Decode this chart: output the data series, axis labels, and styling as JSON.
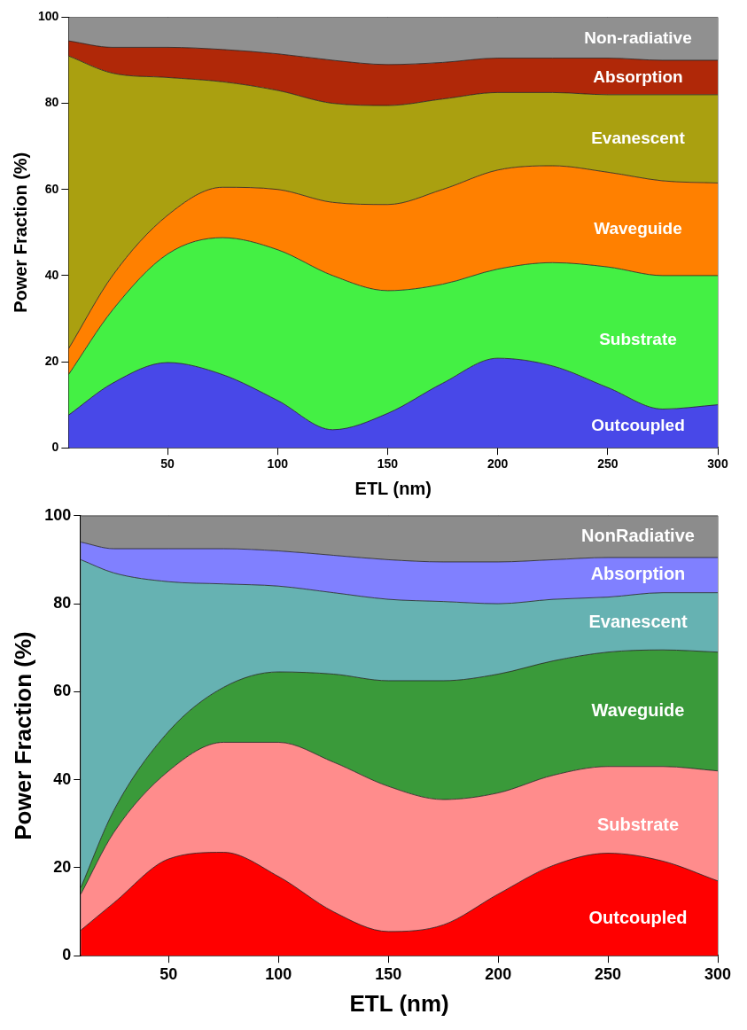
{
  "chart_data": [
    {
      "type": "area",
      "stacked": true,
      "xlabel": "ETL (nm)",
      "ylabel": "Power Fraction (%)",
      "x": [
        5,
        25,
        50,
        75,
        100,
        125,
        150,
        175,
        200,
        225,
        250,
        275,
        300
      ],
      "xlim": [
        5,
        300
      ],
      "xticks": [
        50,
        100,
        150,
        200,
        250,
        300
      ],
      "ylim": [
        0,
        100
      ],
      "yticks": [
        0,
        20,
        40,
        60,
        80,
        100
      ],
      "grid": true,
      "legend": false,
      "series": [
        {
          "name": "Outcoupled",
          "color": "#4848e8",
          "values": [
            7.6,
            15,
            19.8,
            17,
            11,
            4.2,
            8,
            15,
            20.8,
            19,
            14,
            9,
            10
          ]
        },
        {
          "name": "Substrate",
          "color": "#44f044",
          "values": [
            9.4,
            17,
            25.2,
            31.8,
            35,
            35.8,
            28.5,
            23,
            20.7,
            24,
            28,
            31,
            30
          ]
        },
        {
          "name": "Waveguide",
          "color": "#ff8000",
          "values": [
            6,
            8,
            9,
            11.7,
            14,
            17,
            20,
            22,
            23,
            22.5,
            22,
            22,
            21.5
          ]
        },
        {
          "name": "Evanescent",
          "color": "#aaa010",
          "values": [
            68,
            47,
            32,
            24.5,
            23,
            23,
            23,
            21,
            18,
            17,
            18,
            20,
            20.5
          ]
        },
        {
          "name": "Absorption",
          "color": "#b02808",
          "values": [
            3.5,
            6,
            7,
            7.5,
            8.5,
            10,
            9.5,
            8.5,
            8,
            8,
            8.5,
            8,
            8
          ]
        },
        {
          "name": "Non-radiative",
          "color": "#909090",
          "values": [
            5.5,
            7,
            7,
            7.5,
            8.5,
            10,
            11,
            10.5,
            9.5,
            9.5,
            9.5,
            10,
            10
          ]
        }
      ]
    },
    {
      "type": "area",
      "stacked": true,
      "xlabel": "ETL (nm)",
      "ylabel": "Power Fraction (%)",
      "x": [
        10,
        25,
        50,
        75,
        100,
        125,
        150,
        175,
        200,
        225,
        250,
        275,
        300
      ],
      "xlim": [
        10,
        300
      ],
      "xticks": [
        50,
        100,
        150,
        200,
        250,
        300
      ],
      "ylim": [
        0,
        100
      ],
      "yticks": [
        0,
        20,
        40,
        60,
        80,
        100
      ],
      "grid": true,
      "legend": false,
      "series": [
        {
          "name": "Outcoupled",
          "color": "#ff0000",
          "values": [
            5.8,
            12,
            22,
            23.5,
            18,
            10,
            5.5,
            7,
            14,
            20.5,
            23.3,
            21.5,
            17
          ]
        },
        {
          "name": "Substrate",
          "color": "#ff8c8c",
          "values": [
            8.2,
            16,
            20,
            25,
            30.5,
            34,
            33,
            28.5,
            23,
            20.5,
            19.7,
            21.5,
            25
          ]
        },
        {
          "name": "Waveguide",
          "color": "#3a9a3a",
          "values": [
            1.5,
            5,
            9,
            12.5,
            16,
            20,
            24,
            27,
            27,
            26,
            26,
            26.5,
            27
          ]
        },
        {
          "name": "Evanescent",
          "color": "#66b2b2",
          "values": [
            74.5,
            54,
            34,
            23.5,
            19.5,
            18.5,
            18.5,
            18,
            16,
            14,
            12.5,
            13,
            13.5
          ]
        },
        {
          "name": "Absorption",
          "color": "#8080ff",
          "values": [
            4,
            5.5,
            7.5,
            8,
            8,
            8.5,
            9,
            9,
            9.5,
            9,
            9,
            8,
            8
          ]
        },
        {
          "name": "NonRadiative",
          "color": "#8c8c8c",
          "values": [
            6,
            7.5,
            7.5,
            7.5,
            8,
            9,
            10,
            10.5,
            10.5,
            10,
            9.5,
            9.5,
            9.5
          ]
        }
      ]
    }
  ]
}
